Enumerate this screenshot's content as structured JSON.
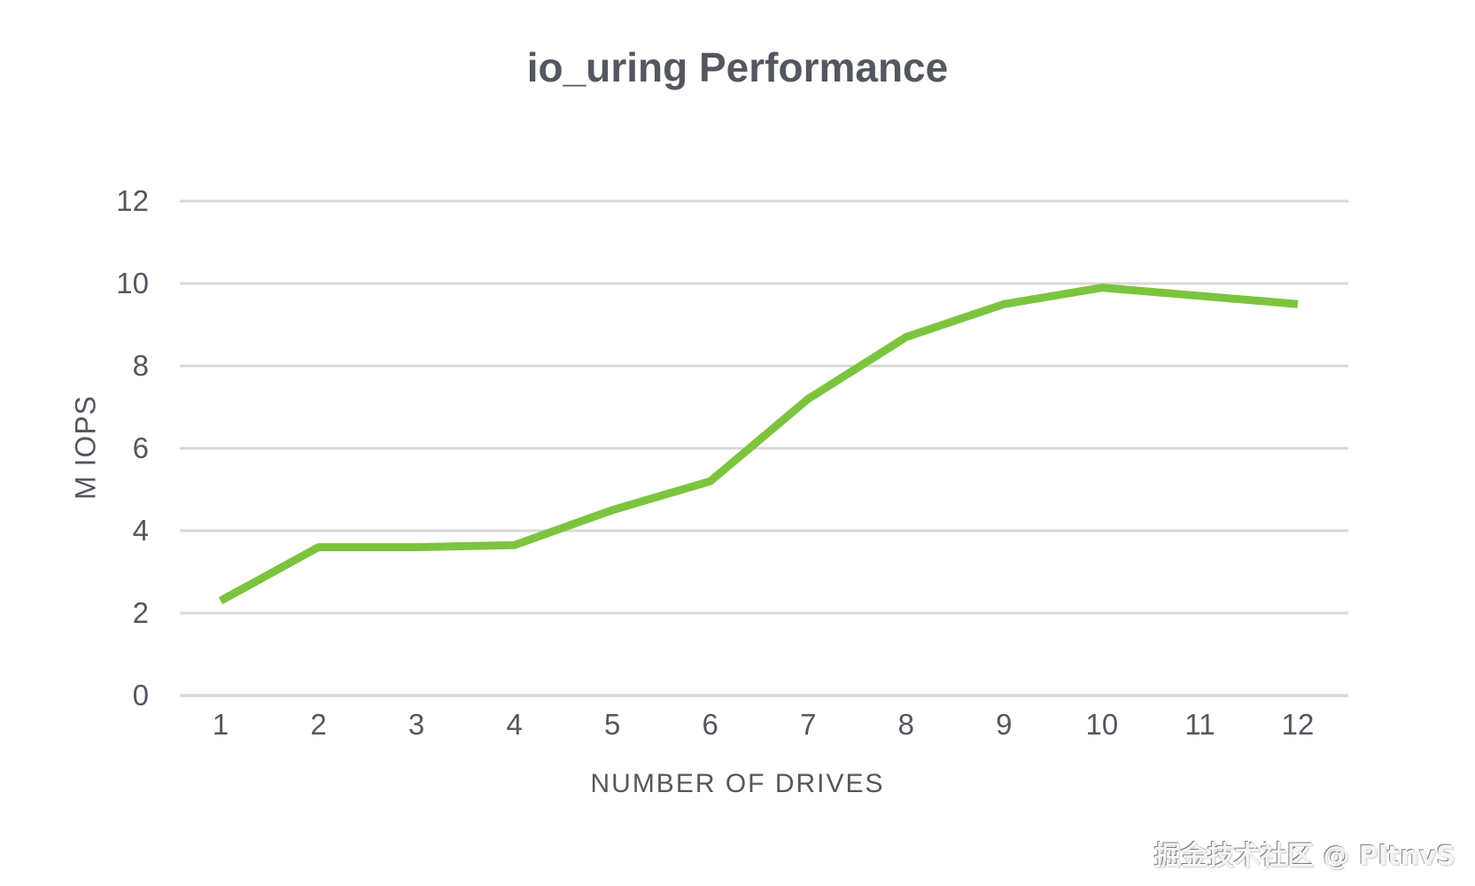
{
  "title": "io_uring Performance",
  "watermark": "掘金技术社区 @ PltnvS",
  "chart_data": {
    "type": "line",
    "title": "io_uring Performance",
    "xlabel": "NUMBER OF DRIVES",
    "ylabel": "M IOPS",
    "categories": [
      1,
      2,
      3,
      4,
      5,
      6,
      7,
      8,
      9,
      10,
      11,
      12
    ],
    "series": [
      {
        "name": "io_uring",
        "values": [
          2.3,
          3.6,
          3.6,
          3.65,
          4.5,
          5.2,
          7.2,
          8.7,
          9.5,
          9.9,
          9.7,
          9.5
        ],
        "color": "#7cc43e"
      }
    ],
    "yticks": [
      0,
      2,
      4,
      6,
      8,
      10,
      12
    ],
    "ylim": [
      0,
      12
    ],
    "xlim": [
      1,
      12
    ],
    "grid": true,
    "legend_position": "none",
    "colors": {
      "grid": "#d8d8d8",
      "text": "#54575f",
      "background": "#ffffff",
      "line": "#7cc43e"
    }
  }
}
